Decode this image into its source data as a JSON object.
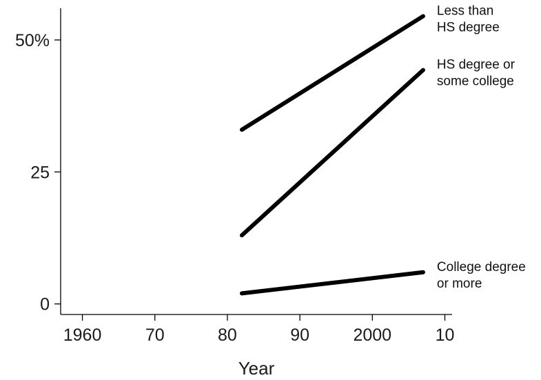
{
  "chart_data": {
    "type": "line",
    "title": "",
    "xlabel": "Year",
    "ylabel": "",
    "xlim": [
      1957,
      2011
    ],
    "ylim": [
      -2,
      56
    ],
    "x_ticks": [
      {
        "value": 1960,
        "label": "1960"
      },
      {
        "value": 1970,
        "label": "70"
      },
      {
        "value": 1980,
        "label": "80"
      },
      {
        "value": 1990,
        "label": "90"
      },
      {
        "value": 2000,
        "label": "2000"
      },
      {
        "value": 2010,
        "label": "10"
      }
    ],
    "y_ticks": [
      {
        "value": 0,
        "label": "0"
      },
      {
        "value": 25,
        "label": "25"
      },
      {
        "value": 50,
        "label": "50%"
      }
    ],
    "grid": false,
    "legend": "none; series labeled at right end of lines",
    "line_color": "#000000",
    "series": [
      {
        "name_lines": [
          "Less than",
          "HS degree"
        ],
        "x": [
          1982,
          2007
        ],
        "values": [
          33,
          54.5
        ]
      },
      {
        "name_lines": [
          "HS degree or",
          "some college"
        ],
        "x": [
          1982,
          2007
        ],
        "values": [
          13,
          44.3
        ]
      },
      {
        "name_lines": [
          "College degree",
          "or more"
        ],
        "x": [
          1982,
          2007
        ],
        "values": [
          2,
          6
        ]
      }
    ]
  }
}
